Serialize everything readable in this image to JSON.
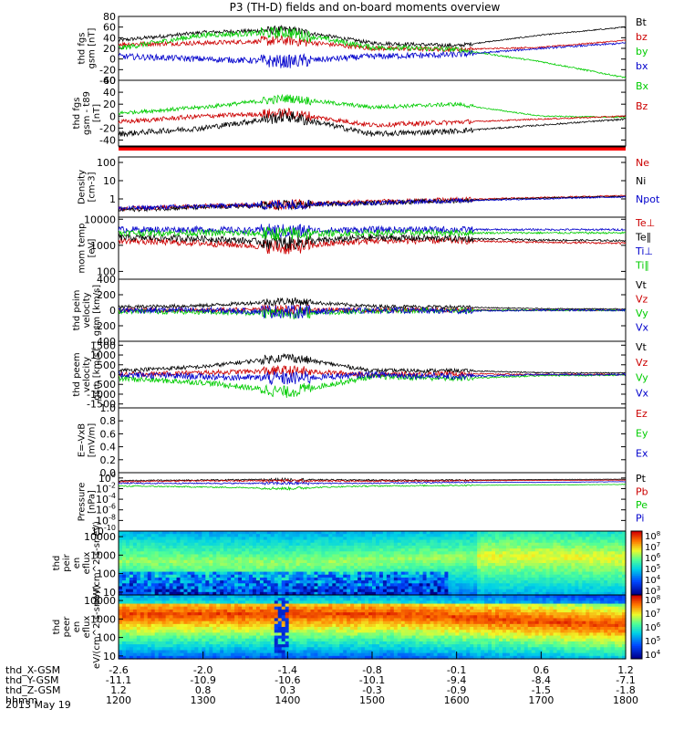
{
  "title": "P3 (TH-D) fields and on-board moments overview",
  "date": "2013 May 19",
  "time_axis": {
    "rows": [
      {
        "label": "thd_X-GSM",
        "values": [
          "-2.6",
          "-2.0",
          "-1.4",
          "-0.8",
          "-0.1",
          "0.6",
          "1.2"
        ]
      },
      {
        "label": "thd_Y-GSM",
        "values": [
          "-11.1",
          "-10.9",
          "-10.6",
          "-10.1",
          "-9.4",
          "-8.4",
          "-7.1"
        ]
      },
      {
        "label": "thd_Z-GSM",
        "values": [
          "1.2",
          "0.8",
          "0.3",
          "-0.3",
          "-0.9",
          "-1.5",
          "-1.8"
        ]
      },
      {
        "label": "hhmm",
        "values": [
          "1200",
          "1300",
          "1400",
          "1500",
          "1600",
          "1700",
          "1800"
        ]
      }
    ]
  },
  "chart_data": [
    {
      "type": "line",
      "ylabel": "thd fgs gsm [nT]",
      "ytick_labels": [
        "80",
        "60",
        "40",
        "20",
        "0",
        "-20",
        "-40"
      ],
      "ylim": [
        -40,
        80
      ],
      "series": [
        {
          "name": "Bt",
          "color": "#000000",
          "x_hhmm": [
            "1200",
            "1300",
            "1400",
            "1500",
            "1600",
            "1700",
            "1800"
          ],
          "values": [
            35,
            50,
            55,
            30,
            25,
            45,
            60
          ]
        },
        {
          "name": "bz",
          "color": "#cc0000",
          "x_hhmm": [
            "1200",
            "1300",
            "1400",
            "1500",
            "1600",
            "1700",
            "1800"
          ],
          "values": [
            28,
            30,
            35,
            20,
            18,
            22,
            35
          ]
        },
        {
          "name": "by",
          "color": "#00cc00",
          "x_hhmm": [
            "1200",
            "1300",
            "1400",
            "1500",
            "1600",
            "1700",
            "1800"
          ],
          "values": [
            20,
            45,
            50,
            22,
            18,
            -5,
            -35
          ]
        },
        {
          "name": "bx",
          "color": "#0000cc",
          "x_hhmm": [
            "1200",
            "1300",
            "1400",
            "1500",
            "1600",
            "1700",
            "1800"
          ],
          "values": [
            5,
            0,
            -5,
            5,
            8,
            20,
            30
          ]
        }
      ]
    },
    {
      "type": "line",
      "ylabel": "thd fgs gsm - t89 [nT]",
      "ytick_labels": [
        "60",
        "40",
        "20",
        "0",
        "-20",
        "-40"
      ],
      "ylim": [
        -50,
        60
      ],
      "series": [
        {
          "name": "Bx",
          "color": "#00cc00",
          "x_hhmm": [
            "1200",
            "1300",
            "1400",
            "1500",
            "1600",
            "1700",
            "1800"
          ],
          "values": [
            5,
            15,
            30,
            15,
            20,
            0,
            -2
          ]
        },
        {
          "name": "Bz",
          "color": "#cc0000",
          "x_hhmm": [
            "1200",
            "1300",
            "1400",
            "1500",
            "1600",
            "1700",
            "1800"
          ],
          "values": [
            -10,
            0,
            5,
            -15,
            -10,
            -5,
            0
          ]
        },
        {
          "name": "",
          "color": "#000000",
          "x_hhmm": [
            "1200",
            "1300",
            "1400",
            "1500",
            "1600",
            "1700",
            "1800"
          ],
          "values": [
            -30,
            -20,
            0,
            -30,
            -25,
            -15,
            -5
          ]
        }
      ]
    },
    {
      "type": "line",
      "ylabel": "Density [cm-3]",
      "ytick_labels": [
        "100",
        "10",
        "1"
      ],
      "scale": "log",
      "ylim": [
        0.1,
        200
      ],
      "series": [
        {
          "name": "Ne",
          "color": "#cc0000",
          "x_hhmm": [
            "1200",
            "1300",
            "1400",
            "1500",
            "1600",
            "1700",
            "1800"
          ],
          "values": [
            0.3,
            0.4,
            0.5,
            0.7,
            0.9,
            1.2,
            1.5
          ]
        },
        {
          "name": "Ni",
          "color": "#000000",
          "x_hhmm": [
            "1200",
            "1300",
            "1400",
            "1500",
            "1600",
            "1700",
            "1800"
          ],
          "values": [
            0.25,
            0.35,
            0.45,
            0.6,
            0.8,
            1.1,
            1.4
          ]
        },
        {
          "name": "Npot",
          "color": "#0000cc",
          "x_hhmm": [
            "1200",
            "1300",
            "1400",
            "1500",
            "1600",
            "1700",
            "1800"
          ],
          "values": [
            0.3,
            0.4,
            0.5,
            0.6,
            0.8,
            1.0,
            1.3
          ]
        }
      ]
    },
    {
      "type": "line",
      "ylabel": "mom temp [eV]",
      "ytick_labels": [
        "10000",
        "1000",
        "100"
      ],
      "scale": "log",
      "ylim": [
        50,
        12000
      ],
      "series": [
        {
          "name": "Te⊥",
          "color": "#cc0000",
          "x_hhmm": [
            "1200",
            "1300",
            "1400",
            "1500",
            "1600",
            "1700",
            "1800"
          ],
          "values": [
            1500,
            1200,
            800,
            1500,
            1500,
            1300,
            1200
          ]
        },
        {
          "name": "Te∥",
          "color": "#000000",
          "x_hhmm": [
            "1200",
            "1300",
            "1400",
            "1500",
            "1600",
            "1700",
            "1800"
          ],
          "values": [
            2000,
            1800,
            1200,
            2000,
            1800,
            1600,
            1500
          ]
        },
        {
          "name": "Ti⊥",
          "color": "#0000cc",
          "x_hhmm": [
            "1200",
            "1300",
            "1400",
            "1500",
            "1600",
            "1700",
            "1800"
          ],
          "values": [
            4000,
            4000,
            3500,
            4000,
            4000,
            4000,
            4000
          ]
        },
        {
          "name": "Ti∥",
          "color": "#00cc00",
          "x_hhmm": [
            "1200",
            "1300",
            "1400",
            "1500",
            "1600",
            "1700",
            "1800"
          ],
          "values": [
            3000,
            3000,
            2800,
            3000,
            3000,
            3000,
            3000
          ]
        }
      ]
    },
    {
      "type": "line",
      "ylabel": "thd peim velocity gsm [km/s]",
      "ytick_labels": [
        "400",
        "200",
        "0",
        "-200",
        "-400"
      ],
      "ylim": [
        -400,
        400
      ],
      "series": [
        {
          "name": "Vt",
          "color": "#000000",
          "x_hhmm": [
            "1200",
            "1300",
            "1400",
            "1500",
            "1600",
            "1700",
            "1800"
          ],
          "values": [
            40,
            60,
            120,
            50,
            40,
            20,
            15
          ]
        },
        {
          "name": "Vz",
          "color": "#cc0000",
          "x_hhmm": [
            "1200",
            "1300",
            "1400",
            "1500",
            "1600",
            "1700",
            "1800"
          ],
          "values": [
            0,
            5,
            10,
            0,
            5,
            0,
            0
          ]
        },
        {
          "name": "Vy",
          "color": "#00cc00",
          "x_hhmm": [
            "1200",
            "1300",
            "1400",
            "1500",
            "1600",
            "1700",
            "1800"
          ],
          "values": [
            -10,
            -20,
            -40,
            -10,
            0,
            0,
            0
          ]
        },
        {
          "name": "Vx",
          "color": "#0000cc",
          "x_hhmm": [
            "1200",
            "1300",
            "1400",
            "1500",
            "1600",
            "1700",
            "1800"
          ],
          "values": [
            0,
            0,
            -20,
            0,
            -10,
            0,
            0
          ]
        }
      ]
    },
    {
      "type": "line",
      "ylabel": "thd peem velocity gsm [km/s]",
      "ytick_labels": [
        "1500",
        "1000",
        "500",
        "0",
        "-500",
        "-1000",
        "-1500"
      ],
      "ylim": [
        -1700,
        1700
      ],
      "series": [
        {
          "name": "Vt",
          "color": "#000000",
          "x_hhmm": [
            "1200",
            "1300",
            "1400",
            "1500",
            "1600",
            "1700",
            "1800"
          ],
          "values": [
            200,
            400,
            900,
            200,
            200,
            100,
            80
          ]
        },
        {
          "name": "Vz",
          "color": "#cc0000",
          "x_hhmm": [
            "1200",
            "1300",
            "1400",
            "1500",
            "1600",
            "1700",
            "1800"
          ],
          "values": [
            0,
            100,
            200,
            0,
            50,
            0,
            0
          ]
        },
        {
          "name": "Vy",
          "color": "#00cc00",
          "x_hhmm": [
            "1200",
            "1300",
            "1400",
            "1500",
            "1600",
            "1700",
            "1800"
          ],
          "values": [
            -200,
            -400,
            -900,
            -100,
            -200,
            -50,
            -20
          ]
        },
        {
          "name": "Vx",
          "color": "#0000cc",
          "x_hhmm": [
            "1200",
            "1300",
            "1400",
            "1500",
            "1600",
            "1700",
            "1800"
          ],
          "values": [
            0,
            -100,
            -200,
            0,
            -100,
            0,
            0
          ]
        }
      ]
    },
    {
      "type": "line",
      "ylabel": "E=-VxB [mV/m]",
      "ytick_labels": [
        "1.0",
        "0.8",
        "0.6",
        "0.4",
        "0.2",
        "0.0"
      ],
      "ylim": [
        0,
        1
      ],
      "series": [
        {
          "name": "Ez",
          "color": "#cc0000",
          "values": []
        },
        {
          "name": "Ey",
          "color": "#00cc00",
          "values": []
        },
        {
          "name": "Ex",
          "color": "#0000cc",
          "values": []
        }
      ]
    },
    {
      "type": "line",
      "ylabel": "Pressure [nPa]",
      "ytick_labels": [
        "10^0",
        "10^-2",
        "10^-4",
        "10^-6",
        "10^-8",
        "10^-10"
      ],
      "scale": "log",
      "ylim": [
        1e-10,
        10
      ],
      "series": [
        {
          "name": "Pt",
          "color": "#000000",
          "x_hhmm": [
            "1200",
            "1300",
            "1400",
            "1500",
            "1600",
            "1700",
            "1800"
          ],
          "values": [
            0.3,
            0.4,
            0.5,
            0.4,
            0.4,
            0.5,
            0.6
          ]
        },
        {
          "name": "Pb",
          "color": "#cc0000",
          "x_hhmm": [
            "1200",
            "1300",
            "1400",
            "1500",
            "1600",
            "1700",
            "1800"
          ],
          "values": [
            0.2,
            0.3,
            0.3,
            0.25,
            0.3,
            0.35,
            0.4
          ]
        },
        {
          "name": "Pe",
          "color": "#00cc00",
          "x_hhmm": [
            "1200",
            "1300",
            "1400",
            "1500",
            "1600",
            "1700",
            "1800"
          ],
          "values": [
            0.03,
            0.02,
            0.01,
            0.03,
            0.04,
            0.05,
            0.06
          ]
        },
        {
          "name": "Pi",
          "color": "#0000cc",
          "x_hhmm": [
            "1200",
            "1300",
            "1400",
            "1500",
            "1600",
            "1700",
            "1800"
          ],
          "values": [
            0.1,
            0.1,
            0.1,
            0.1,
            0.15,
            0.15,
            0.2
          ]
        }
      ]
    },
    {
      "type": "heatmap",
      "ylabel": "thd peir en eflux eV/(cm^2-s-sr-eV)",
      "ytick_labels": [
        "10000",
        "1000",
        "100",
        "10"
      ],
      "colorbar_labels": [
        "10^8",
        "10^7",
        "10^6",
        "10^5",
        "10^4",
        "10^3"
      ]
    },
    {
      "type": "heatmap",
      "ylabel": "thd peer en eflux eV/(cm^2-s-sr-eV)",
      "ytick_labels": [
        "10000",
        "1000",
        "100",
        "10"
      ],
      "colorbar_labels": [
        "10^8",
        "10^7",
        "10^6",
        "10^5",
        "10^4"
      ]
    }
  ]
}
